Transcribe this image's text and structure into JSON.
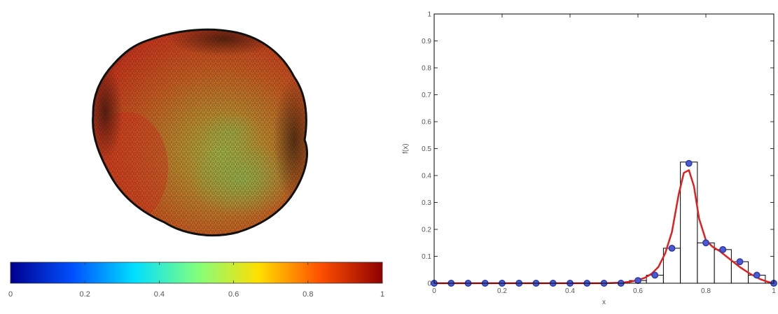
{
  "colorbar": {
    "ticks": [
      "0",
      "0.2",
      "0.4",
      "0.6",
      "0.8",
      "1"
    ],
    "colormap": [
      "#00008f",
      "#0050ff",
      "#00dfff",
      "#7fff7f",
      "#ffdf00",
      "#ff5000",
      "#8f0000"
    ]
  },
  "mesh": {
    "icon": "deformed-sphere-mesh",
    "colors": [
      "#d23a1c",
      "#c95a1f",
      "#b8732a",
      "#9fa23e",
      "#7a2a18",
      "#1a1a1a"
    ]
  },
  "chart_data": {
    "type": "bar",
    "xlabel": "x",
    "ylabel": "f(x)",
    "xlim": [
      0,
      1
    ],
    "ylim": [
      0,
      1
    ],
    "xticks": [
      "0",
      "0.2",
      "0.4",
      "0.6",
      "0.8",
      "1"
    ],
    "yticks": [
      "0",
      "0.1",
      "0.2",
      "0.3",
      "0.4",
      "0.5",
      "0.6",
      "0.7",
      "0.8",
      "0.9",
      "1"
    ],
    "grid": false,
    "bin_width": 0.05,
    "series": [
      {
        "kind": "histogram",
        "color": "#000000",
        "x": [
          0.0,
          0.05,
          0.1,
          0.15,
          0.2,
          0.25,
          0.3,
          0.35,
          0.4,
          0.45,
          0.5,
          0.55,
          0.6,
          0.65,
          0.7,
          0.75,
          0.8,
          0.85,
          0.9,
          0.95,
          1.0
        ],
        "values": [
          0,
          0,
          0,
          0,
          0,
          0,
          0,
          0,
          0,
          0,
          0,
          0,
          0.01,
          0.03,
          0.13,
          0.45,
          0.15,
          0.125,
          0.08,
          0.03,
          0
        ]
      },
      {
        "kind": "markers",
        "color": "#2f3aa8",
        "x": [
          0.0,
          0.05,
          0.1,
          0.15,
          0.2,
          0.25,
          0.3,
          0.35,
          0.4,
          0.45,
          0.5,
          0.55,
          0.6,
          0.65,
          0.7,
          0.75,
          0.8,
          0.85,
          0.9,
          0.95,
          1.0
        ],
        "values": [
          0,
          0,
          0,
          0,
          0,
          0,
          0,
          0,
          0,
          0,
          0,
          0,
          0.01,
          0.03,
          0.13,
          0.445,
          0.15,
          0.125,
          0.08,
          0.03,
          0
        ]
      },
      {
        "kind": "line",
        "color": "#e02020",
        "x": [
          0.0,
          0.5,
          0.55,
          0.58,
          0.6,
          0.62,
          0.64,
          0.66,
          0.68,
          0.7,
          0.72,
          0.735,
          0.75,
          0.765,
          0.78,
          0.8,
          0.82,
          0.84,
          0.86,
          0.88,
          0.9,
          0.93,
          0.96,
          0.98,
          1.0
        ],
        "values": [
          0,
          0,
          0.002,
          0.006,
          0.012,
          0.02,
          0.035,
          0.06,
          0.11,
          0.19,
          0.33,
          0.41,
          0.42,
          0.36,
          0.24,
          0.16,
          0.135,
          0.12,
          0.1,
          0.08,
          0.06,
          0.035,
          0.015,
          0.006,
          0
        ]
      }
    ]
  }
}
